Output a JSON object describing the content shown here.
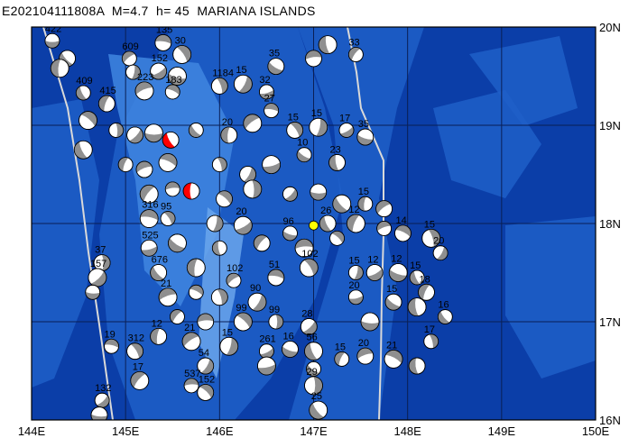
{
  "title": "E202104111808A  M=4.7  h= 45  MARIANA ISLANDS",
  "colors": {
    "deep": "#0b3ea8",
    "mid": "#1f5fc8",
    "shallow": "#3f86e0",
    "ridge": "#6aa6ec",
    "grid": "#0a1f55",
    "trench": "#d9d9d9",
    "focal_dark": "#8f8f8f",
    "focal_light": "#ffffff",
    "highlight_red": "#ff0000",
    "epicenter": "#ffff00"
  },
  "axes": {
    "x_ticks": [
      "144E",
      "145E",
      "146E",
      "147E",
      "148E",
      "149E",
      "150E"
    ],
    "y_ticks": [
      "20N",
      "19N",
      "18N",
      "17N",
      "16N"
    ]
  },
  "events": [
    {
      "lon": 144.22,
      "lat": 19.86,
      "label": "422"
    },
    {
      "lon": 144.38,
      "lat": 19.68,
      "label": ""
    },
    {
      "lon": 144.3,
      "lat": 19.58,
      "label": ""
    },
    {
      "lon": 145.04,
      "lat": 19.68,
      "label": "609"
    },
    {
      "lon": 145.4,
      "lat": 19.84,
      "label": "135"
    },
    {
      "lon": 145.6,
      "lat": 19.72,
      "label": "30"
    },
    {
      "lon": 145.08,
      "lat": 19.54,
      "label": ""
    },
    {
      "lon": 145.35,
      "lat": 19.55,
      "label": "152"
    },
    {
      "lon": 145.55,
      "lat": 19.5,
      "label": ""
    },
    {
      "lon": 144.55,
      "lat": 19.33,
      "label": "409"
    },
    {
      "lon": 144.8,
      "lat": 19.22,
      "label": "415"
    },
    {
      "lon": 145.2,
      "lat": 19.35,
      "label": "223"
    },
    {
      "lon": 145.5,
      "lat": 19.34,
      "label": "183"
    },
    {
      "lon": 146.0,
      "lat": 19.4,
      "label": "1184"
    },
    {
      "lon": 146.25,
      "lat": 19.42,
      "label": "15"
    },
    {
      "lon": 146.5,
      "lat": 19.34,
      "label": "32"
    },
    {
      "lon": 146.6,
      "lat": 19.6,
      "label": "35"
    },
    {
      "lon": 147.15,
      "lat": 19.82,
      "label": ""
    },
    {
      "lon": 147.45,
      "lat": 19.72,
      "label": "33"
    },
    {
      "lon": 147.0,
      "lat": 19.68,
      "label": ""
    },
    {
      "lon": 144.6,
      "lat": 19.05,
      "label": ""
    },
    {
      "lon": 144.9,
      "lat": 18.95,
      "label": ""
    },
    {
      "lon": 145.1,
      "lat": 18.9,
      "label": ""
    },
    {
      "lon": 145.3,
      "lat": 18.92,
      "label": ""
    },
    {
      "lon": 145.75,
      "lat": 18.95,
      "label": ""
    },
    {
      "lon": 146.1,
      "lat": 18.9,
      "label": "20"
    },
    {
      "lon": 146.35,
      "lat": 19.02,
      "label": ""
    },
    {
      "lon": 146.55,
      "lat": 19.15,
      "label": "27"
    },
    {
      "lon": 146.8,
      "lat": 18.95,
      "label": "15"
    },
    {
      "lon": 147.05,
      "lat": 18.98,
      "label": "15"
    },
    {
      "lon": 147.35,
      "lat": 18.95,
      "label": "17"
    },
    {
      "lon": 147.55,
      "lat": 18.88,
      "label": "35"
    },
    {
      "lon": 144.55,
      "lat": 18.75,
      "label": ""
    },
    {
      "lon": 145.0,
      "lat": 18.6,
      "label": ""
    },
    {
      "lon": 145.2,
      "lat": 18.55,
      "label": ""
    },
    {
      "lon": 145.45,
      "lat": 18.62,
      "label": ""
    },
    {
      "lon": 146.0,
      "lat": 18.6,
      "label": ""
    },
    {
      "lon": 146.3,
      "lat": 18.5,
      "label": ""
    },
    {
      "lon": 146.55,
      "lat": 18.6,
      "label": ""
    },
    {
      "lon": 146.9,
      "lat": 18.7,
      "label": "10"
    },
    {
      "lon": 147.25,
      "lat": 18.62,
      "label": "23"
    },
    {
      "lon": 145.25,
      "lat": 18.3,
      "label": ""
    },
    {
      "lon": 145.5,
      "lat": 18.35,
      "label": ""
    },
    {
      "lon": 146.05,
      "lat": 18.25,
      "label": ""
    },
    {
      "lon": 146.35,
      "lat": 18.35,
      "label": ""
    },
    {
      "lon": 146.75,
      "lat": 18.3,
      "label": ""
    },
    {
      "lon": 147.05,
      "lat": 18.32,
      "label": ""
    },
    {
      "lon": 147.3,
      "lat": 18.2,
      "label": ""
    },
    {
      "lon": 147.55,
      "lat": 18.2,
      "label": "15"
    },
    {
      "lon": 147.75,
      "lat": 18.15,
      "label": ""
    },
    {
      "lon": 145.25,
      "lat": 18.05,
      "label": "316"
    },
    {
      "lon": 145.45,
      "lat": 18.05,
      "label": "95"
    },
    {
      "lon": 145.95,
      "lat": 18.0,
      "label": ""
    },
    {
      "lon": 146.25,
      "lat": 17.98,
      "label": "20"
    },
    {
      "lon": 146.75,
      "lat": 17.9,
      "label": "96"
    },
    {
      "lon": 147.15,
      "lat": 18.0,
      "label": "26"
    },
    {
      "lon": 147.45,
      "lat": 18.0,
      "label": "12"
    },
    {
      "lon": 147.75,
      "lat": 17.95,
      "label": ""
    },
    {
      "lon": 147.95,
      "lat": 17.9,
      "label": "14"
    },
    {
      "lon": 148.25,
      "lat": 17.85,
      "label": "15"
    },
    {
      "lon": 148.35,
      "lat": 17.7,
      "label": "20"
    },
    {
      "lon": 145.25,
      "lat": 17.75,
      "label": "525"
    },
    {
      "lon": 145.55,
      "lat": 17.8,
      "label": ""
    },
    {
      "lon": 146.0,
      "lat": 17.75,
      "label": ""
    },
    {
      "lon": 146.45,
      "lat": 17.8,
      "label": ""
    },
    {
      "lon": 146.9,
      "lat": 17.75,
      "label": ""
    },
    {
      "lon": 147.25,
      "lat": 17.85,
      "label": ""
    },
    {
      "lon": 144.75,
      "lat": 17.6,
      "label": "37"
    },
    {
      "lon": 144.7,
      "lat": 17.45,
      "label": "157"
    },
    {
      "lon": 144.65,
      "lat": 17.3,
      "label": ""
    },
    {
      "lon": 145.35,
      "lat": 17.5,
      "label": "676"
    },
    {
      "lon": 145.75,
      "lat": 17.55,
      "label": ""
    },
    {
      "lon": 146.15,
      "lat": 17.42,
      "label": "102"
    },
    {
      "lon": 146.6,
      "lat": 17.45,
      "label": "51"
    },
    {
      "lon": 146.95,
      "lat": 17.55,
      "label": "102"
    },
    {
      "lon": 147.45,
      "lat": 17.5,
      "label": "15"
    },
    {
      "lon": 147.65,
      "lat": 17.5,
      "label": "12"
    },
    {
      "lon": 147.9,
      "lat": 17.5,
      "label": "12"
    },
    {
      "lon": 148.1,
      "lat": 17.45,
      "label": "15"
    },
    {
      "lon": 148.2,
      "lat": 17.3,
      "label": "18"
    },
    {
      "lon": 145.45,
      "lat": 17.25,
      "label": "21"
    },
    {
      "lon": 145.75,
      "lat": 17.3,
      "label": ""
    },
    {
      "lon": 146.0,
      "lat": 17.25,
      "label": ""
    },
    {
      "lon": 146.4,
      "lat": 17.2,
      "label": "90"
    },
    {
      "lon": 147.45,
      "lat": 17.25,
      "label": "20"
    },
    {
      "lon": 147.85,
      "lat": 17.2,
      "label": "15"
    },
    {
      "lon": 148.1,
      "lat": 17.15,
      "label": ""
    },
    {
      "lon": 145.55,
      "lat": 17.05,
      "label": ""
    },
    {
      "lon": 145.85,
      "lat": 17.0,
      "label": ""
    },
    {
      "lon": 146.25,
      "lat": 17.0,
      "label": "99"
    },
    {
      "lon": 146.6,
      "lat": 17.0,
      "label": "99"
    },
    {
      "lon": 146.95,
      "lat": 16.95,
      "label": "28"
    },
    {
      "lon": 147.6,
      "lat": 17.0,
      "label": ""
    },
    {
      "lon": 148.4,
      "lat": 17.05,
      "label": "16"
    },
    {
      "lon": 145.35,
      "lat": 16.85,
      "label": "12"
    },
    {
      "lon": 145.7,
      "lat": 16.8,
      "label": "21"
    },
    {
      "lon": 144.85,
      "lat": 16.75,
      "label": "19"
    },
    {
      "lon": 145.1,
      "lat": 16.7,
      "label": "312"
    },
    {
      "lon": 146.1,
      "lat": 16.75,
      "label": "15"
    },
    {
      "lon": 146.5,
      "lat": 16.7,
      "label": "261"
    },
    {
      "lon": 146.75,
      "lat": 16.72,
      "label": "16"
    },
    {
      "lon": 147.0,
      "lat": 16.7,
      "label": "56"
    },
    {
      "lon": 147.3,
      "lat": 16.62,
      "label": "15"
    },
    {
      "lon": 147.55,
      "lat": 16.65,
      "label": "20"
    },
    {
      "lon": 147.85,
      "lat": 16.62,
      "label": "21"
    },
    {
      "lon": 148.25,
      "lat": 16.8,
      "label": "17"
    },
    {
      "lon": 145.85,
      "lat": 16.55,
      "label": "54"
    },
    {
      "lon": 146.5,
      "lat": 16.55,
      "label": ""
    },
    {
      "lon": 147.0,
      "lat": 16.52,
      "label": ""
    },
    {
      "lon": 148.1,
      "lat": 16.55,
      "label": ""
    },
    {
      "lon": 145.15,
      "lat": 16.4,
      "label": "17"
    },
    {
      "lon": 145.7,
      "lat": 16.35,
      "label": "537"
    },
    {
      "lon": 145.85,
      "lat": 16.28,
      "label": "152"
    },
    {
      "lon": 147.0,
      "lat": 16.35,
      "label": "29"
    },
    {
      "lon": 144.75,
      "lat": 16.2,
      "label": "132"
    },
    {
      "lon": 144.72,
      "lat": 16.05,
      "label": ""
    },
    {
      "lon": 147.05,
      "lat": 16.1,
      "label": "25"
    }
  ],
  "highlighted_events": [
    {
      "lon": 145.48,
      "lat": 18.85
    },
    {
      "lon": 145.7,
      "lat": 18.33
    }
  ],
  "epicenter": {
    "lon": 147.0,
    "lat": 17.98
  }
}
